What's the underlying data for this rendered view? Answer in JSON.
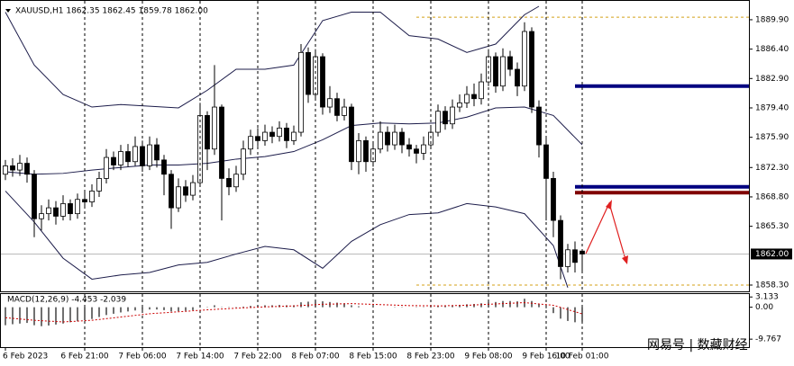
{
  "chart_data": [
    {
      "type": "candlestick",
      "title": "XAUUSD,H1  1862.35 1862.45 1859.78 1862.00",
      "categories": [
        "6 Feb 2023",
        null,
        null,
        null,
        null,
        null,
        null,
        null,
        null,
        null,
        null,
        "6 Feb 21:00",
        null,
        null,
        null,
        null,
        null,
        null,
        null,
        "7 Feb 06:00",
        null,
        null,
        null,
        null,
        null,
        null,
        null,
        "7 Feb 14:00",
        null,
        null,
        null,
        null,
        null,
        null,
        null,
        "7 Feb 22:00",
        null,
        null,
        null,
        null,
        null,
        null,
        null,
        "8 Feb 07:00",
        null,
        null,
        null,
        null,
        null,
        null,
        null,
        "8 Feb 15:00",
        null,
        null,
        null,
        null,
        null,
        null,
        null,
        "8 Feb 23:00",
        null,
        null,
        null,
        null,
        null,
        null,
        null,
        "9 Feb 08:00",
        null,
        null,
        null,
        null,
        null,
        null,
        null,
        "9 Feb 16:00",
        null,
        null,
        null,
        null,
        "10 Feb 01:00"
      ],
      "open": [
        1871.5,
        1872.5,
        1872.0,
        1872.8,
        1871.5,
        1866.2,
        1866.8,
        1867.5,
        1866.5,
        1868.0,
        1866.8,
        1868.5,
        1868.2,
        1869.5,
        1871.0,
        1873.5,
        1872.6,
        1874.2,
        1873.0,
        1874.8,
        1872.5,
        1875.0,
        1873.2,
        1871.5,
        1867.5,
        1870.0,
        1869.0,
        1870.5,
        1878.5,
        1874.5,
        1879.5,
        1871.0,
        1870.0,
        1871.5,
        1874.5,
        1876.0,
        1875.5,
        1876.5,
        1876.0,
        1877.0,
        1875.5,
        1876.5,
        1886.0,
        1881.0,
        1885.5,
        1879.5,
        1880.5,
        1878.5,
        1879.5,
        1873.0,
        1875.5,
        1873.0,
        1874.5,
        1876.5,
        1875.0,
        1876.5,
        1875.0,
        1874.5,
        1874.0,
        1875.0,
        1876.5,
        1879.0,
        1877.5,
        1879.5,
        1880.0,
        1881.0,
        1880.5,
        1882.5,
        1885.5,
        1882.0,
        1885.5,
        1884.0,
        1882.0,
        1888.5,
        1879.5,
        1875.0,
        1871.0,
        1866.0,
        1860.5,
        1862.5,
        1862.35
      ],
      "high": [
        1873.2,
        1873.4,
        1873.8,
        1873.5,
        1872.0,
        1867.8,
        1868.5,
        1868.3,
        1869.0,
        1868.5,
        1869.2,
        1869.4,
        1870.3,
        1871.8,
        1874.5,
        1874.2,
        1875.0,
        1875.1,
        1876.0,
        1875.5,
        1876.0,
        1875.8,
        1873.8,
        1872.0,
        1871.0,
        1870.8,
        1871.4,
        1880.0,
        1879.0,
        1884.5,
        1879.8,
        1872.2,
        1872.5,
        1875.5,
        1876.8,
        1877.0,
        1877.4,
        1877.2,
        1877.8,
        1877.6,
        1877.3,
        1887.0,
        1886.6,
        1886.4,
        1885.9,
        1882.0,
        1881.2,
        1880.5,
        1879.9,
        1876.4,
        1876.0,
        1875.3,
        1877.8,
        1877.2,
        1877.4,
        1877.0,
        1875.8,
        1875.0,
        1876.0,
        1877.2,
        1879.8,
        1879.6,
        1880.4,
        1881.0,
        1882.0,
        1882.3,
        1883.5,
        1886.4,
        1886.0,
        1886.5,
        1886.2,
        1884.8,
        1889.6,
        1889.0,
        1880.3,
        1875.8,
        1871.8,
        1866.6,
        1863.2,
        1863.5,
        1862.45
      ],
      "low": [
        1870.8,
        1871.2,
        1871.3,
        1870.5,
        1864.0,
        1864.8,
        1866.0,
        1865.5,
        1866.0,
        1866.0,
        1866.2,
        1867.5,
        1867.6,
        1868.8,
        1870.4,
        1872.0,
        1872.0,
        1872.4,
        1872.5,
        1871.8,
        1872.0,
        1872.3,
        1869.0,
        1865.0,
        1867.0,
        1868.2,
        1868.4,
        1870.0,
        1872.0,
        1873.8,
        1866.0,
        1869.0,
        1869.4,
        1870.8,
        1873.8,
        1874.8,
        1874.9,
        1875.2,
        1875.4,
        1874.6,
        1875.0,
        1876.0,
        1880.0,
        1880.4,
        1878.6,
        1878.8,
        1877.8,
        1877.9,
        1872.0,
        1871.5,
        1871.8,
        1872.4,
        1874.0,
        1874.2,
        1874.4,
        1874.0,
        1873.6,
        1872.8,
        1873.2,
        1874.6,
        1876.0,
        1876.8,
        1876.9,
        1878.9,
        1879.4,
        1879.6,
        1879.8,
        1882.0,
        1881.2,
        1881.4,
        1883.2,
        1880.8,
        1881.4,
        1878.8,
        1873.5,
        1866.0,
        1864.0,
        1859.0,
        1859.8,
        1859.8,
        1859.78
      ],
      "close": [
        1872.5,
        1872.0,
        1872.8,
        1871.5,
        1866.2,
        1866.8,
        1867.5,
        1866.5,
        1868.0,
        1866.8,
        1868.5,
        1868.2,
        1869.5,
        1871.0,
        1873.5,
        1872.6,
        1874.2,
        1873.0,
        1874.8,
        1872.5,
        1875.0,
        1873.2,
        1871.5,
        1867.5,
        1870.0,
        1869.0,
        1870.5,
        1878.5,
        1874.5,
        1879.5,
        1871.0,
        1870.0,
        1871.5,
        1874.5,
        1876.0,
        1875.5,
        1876.5,
        1876.0,
        1877.0,
        1875.5,
        1876.5,
        1886.0,
        1881.0,
        1885.5,
        1879.5,
        1880.5,
        1878.5,
        1879.5,
        1873.0,
        1875.5,
        1873.0,
        1874.5,
        1876.5,
        1875.0,
        1876.5,
        1875.0,
        1874.5,
        1874.0,
        1875.0,
        1876.5,
        1879.0,
        1877.5,
        1879.5,
        1880.0,
        1881.0,
        1880.5,
        1882.5,
        1885.5,
        1882.0,
        1885.5,
        1884.0,
        1882.0,
        1888.5,
        1879.5,
        1875.0,
        1871.0,
        1866.0,
        1860.5,
        1862.5,
        1861.0,
        1862.0
      ],
      "bands": [
        {
          "color": "#1c1c4a",
          "x": [
            0,
            4,
            8,
            12,
            16,
            20,
            24,
            28,
            32,
            36,
            40,
            44,
            48,
            52,
            56,
            60,
            64,
            68,
            72,
            74
          ],
          "values": [
            1890.8,
            1884.5,
            1881.0,
            1879.5,
            1879.8,
            1879.6,
            1879.4,
            1881.5,
            1884.0,
            1884.0,
            1884.5,
            1889.8,
            1890.8,
            1890.8,
            1888.0,
            1887.6,
            1886.0,
            1887.0,
            1890.5,
            1891.5
          ]
        },
        {
          "color": "#1c1c4a",
          "x": [
            0,
            4,
            8,
            12,
            16,
            20,
            24,
            28,
            32,
            36,
            40,
            44,
            48,
            52,
            56,
            60,
            64,
            68,
            72,
            76,
            80
          ],
          "values": [
            1871.8,
            1871.5,
            1871.6,
            1872.0,
            1872.3,
            1872.6,
            1872.6,
            1872.8,
            1873.3,
            1873.6,
            1874.2,
            1875.6,
            1877.3,
            1877.6,
            1877.5,
            1877.6,
            1878.3,
            1879.4,
            1879.5,
            1878.5,
            1875.0
          ]
        },
        {
          "color": "#1c1c4a",
          "x": [
            0,
            4,
            8,
            12,
            16,
            20,
            24,
            28,
            32,
            36,
            40,
            44,
            48,
            52,
            56,
            60,
            64,
            68,
            72,
            76,
            78
          ],
          "values": [
            1869.5,
            1865.8,
            1861.5,
            1859.0,
            1859.5,
            1859.8,
            1860.7,
            1861.0,
            1862.0,
            1862.9,
            1862.5,
            1860.3,
            1863.5,
            1865.5,
            1866.7,
            1866.9,
            1868.0,
            1867.6,
            1866.8,
            1863.0,
            1858.0
          ]
        }
      ],
      "levels": [
        {
          "value": 1882.0,
          "from": 79,
          "color": "#000080",
          "width": 4,
          "dash": "none"
        },
        {
          "value": 1870.0,
          "from": 79,
          "color": "#000080",
          "width": 4,
          "dash": "none"
        },
        {
          "value": 1869.3,
          "from": 79,
          "color": "#800000",
          "width": 4,
          "dash": "none"
        },
        {
          "value": 1890.2,
          "from": 57,
          "color": "#d4a017",
          "width": 1,
          "dash": "3 3"
        },
        {
          "value": 1858.3,
          "from": 57,
          "color": "#d4a017",
          "width": 1,
          "dash": "3 3"
        }
      ],
      "last_price": {
        "value": 1862.0,
        "label": "1862.00"
      },
      "ylim": [
        1857.55,
        1892.25
      ],
      "yticks": [
        {
          "value": 1889.9,
          "label": "1889.90"
        },
        {
          "value": 1886.4,
          "label": "1886.40"
        },
        {
          "value": 1882.9,
          "label": "1882.90"
        },
        {
          "value": 1879.4,
          "label": "1879.40"
        },
        {
          "value": 1875.9,
          "label": "1875.90"
        },
        {
          "value": 1872.3,
          "label": "1872.30"
        },
        {
          "value": 1868.8,
          "label": "1868.80"
        },
        {
          "value": 1865.3,
          "label": "1865.30"
        },
        {
          "value": 1858.3,
          "label": "1858.30"
        }
      ],
      "grid": true
    },
    {
      "type": "macd",
      "title": "MACD(12,26,9) -4.453 -2.039",
      "values": [
        -5.5,
        -5.2,
        -5.0,
        -4.8,
        -5.5,
        -5.8,
        -5.6,
        -5.3,
        -5.0,
        -4.6,
        -4.3,
        -4.0,
        -3.6,
        -3.0,
        -2.4,
        -2.0,
        -1.6,
        -1.3,
        -1.0,
        -0.9,
        -0.7,
        -0.7,
        -0.9,
        -1.3,
        -1.2,
        -1.1,
        -0.9,
        0.0,
        0.1,
        0.6,
        0.1,
        -0.1,
        -0.1,
        0.2,
        0.4,
        0.5,
        0.6,
        0.6,
        0.7,
        0.6,
        0.6,
        1.5,
        1.7,
        2.0,
        1.8,
        1.6,
        1.4,
        1.2,
        0.6,
        0.3,
        0.0,
        -0.1,
        0.0,
        0.0,
        0.1,
        0.1,
        0.0,
        -0.1,
        -0.1,
        0.0,
        0.3,
        0.3,
        0.5,
        0.7,
        0.9,
        1.0,
        1.2,
        1.6,
        1.6,
        1.9,
        1.9,
        1.8,
        2.6,
        1.9,
        1.0,
        -0.3,
        -1.8,
        -3.5,
        -4.2,
        -4.6,
        -4.453
      ],
      "color": "#222222",
      "signal": {
        "color": "#cc0000",
        "x": [
          0,
          4,
          8,
          12,
          16,
          20,
          24,
          28,
          32,
          36,
          40,
          44,
          48,
          52,
          56,
          60,
          64,
          68,
          72,
          76,
          80
        ],
        "values": [
          -3.2,
          -4.0,
          -4.5,
          -4.0,
          -3.0,
          -2.0,
          -1.4,
          -0.8,
          -0.3,
          0.1,
          0.4,
          0.9,
          1.1,
          0.8,
          0.5,
          0.4,
          0.6,
          1.0,
          1.4,
          0.6,
          -2.039
        ]
      },
      "ylim": [
        -12.2,
        4.3
      ],
      "yticks": [
        3.133,
        {
          "value": 0,
          "label": "0.00"
        },
        -9.767
      ]
    }
  ],
  "watermark": "网易号 | 数藏财经"
}
